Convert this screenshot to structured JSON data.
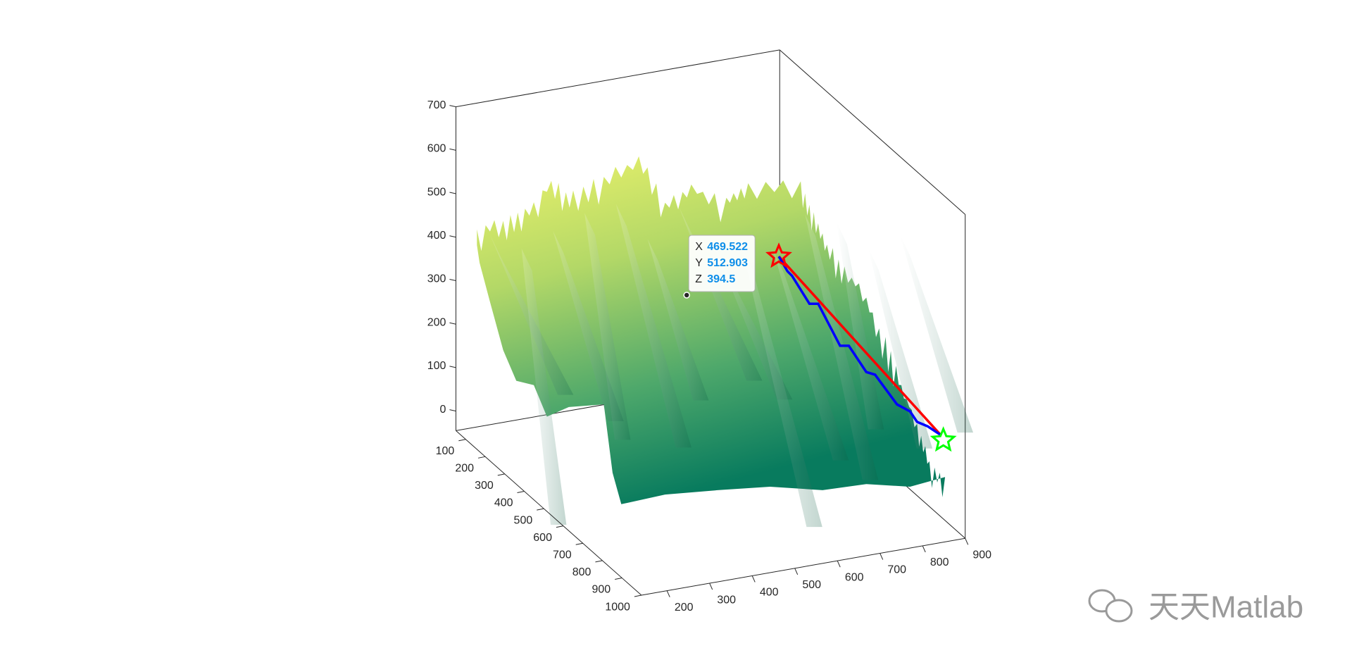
{
  "chart_data": {
    "type": "surface",
    "xlim": [
      140,
      900
    ],
    "xticks": [
      200,
      300,
      400,
      500,
      600,
      700,
      800,
      900
    ],
    "ylim": [
      50,
      1000
    ],
    "yticks": [
      100,
      200,
      300,
      400,
      500,
      600,
      700,
      800,
      900,
      1000
    ],
    "zlim": [
      -45,
      700
    ],
    "zticks": [
      0,
      100,
      200,
      300,
      400,
      500,
      600,
      700
    ],
    "datatip": {
      "labels": [
        "X",
        "Y",
        "Z"
      ],
      "values": [
        469.522,
        512.903,
        394.5
      ]
    }
  },
  "watermark": "天天Matlab"
}
